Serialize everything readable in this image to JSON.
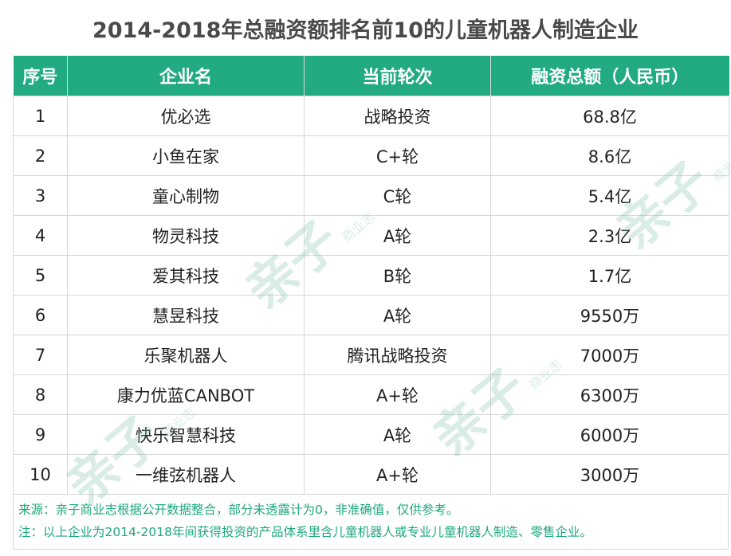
{
  "title": "2014-2018年总融资额排名前10的儿童机器人制造企业",
  "table": {
    "headers": [
      "序号",
      "企业名",
      "当前轮次",
      "融资总额（人民币）"
    ],
    "rows": [
      [
        "1",
        "优必选",
        "战略投资",
        "68.8亿"
      ],
      [
        "2",
        "小鱼在家",
        "C+轮",
        "8.6亿"
      ],
      [
        "3",
        "童心制物",
        "C轮",
        "5.4亿"
      ],
      [
        "4",
        "物灵科技",
        "A轮",
        "2.3亿"
      ],
      [
        "5",
        "爱其科技",
        "B轮",
        "1.7亿"
      ],
      [
        "6",
        "慧昱科技",
        "A轮",
        "9550万"
      ],
      [
        "7",
        "乐聚机器人",
        "腾讯战略投资",
        "7000万"
      ],
      [
        "8",
        "康力优蓝CANBOT",
        "A+轮",
        "6300万"
      ],
      [
        "9",
        "快乐智慧科技",
        "A轮",
        "6000万"
      ],
      [
        "10",
        "一维弦机器人",
        "A+轮",
        "3000万"
      ]
    ]
  },
  "footer": {
    "source": "来源：亲子商业志根据公开数据整合，部分未透露计为0，非准确值，仅供参考。",
    "note": "注：以上企业为2014-2018年间获得投资的产品体系里含儿童机器人或专业儿童机器人制造、零售企业。"
  },
  "watermark": {
    "big": "亲子",
    "small": "商业志"
  },
  "colors": {
    "header_bg": "#22ab83",
    "footer_text": "#1fa87e",
    "title_text": "#4a4a4a"
  }
}
